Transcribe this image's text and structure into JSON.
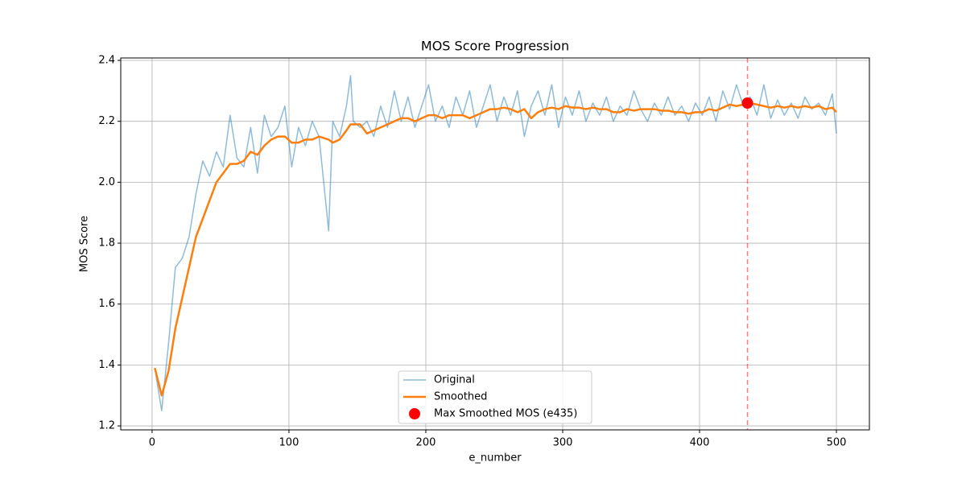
{
  "chart_data": {
    "type": "line",
    "title": "MOS Score Progression",
    "xlabel": "e_number",
    "ylabel": "MOS Score",
    "xlim": [
      -22.9,
      524.1
    ],
    "ylim": [
      1.187,
      2.408
    ],
    "xticks": [
      0,
      100,
      200,
      300,
      400,
      500
    ],
    "yticks": [
      1.2,
      1.4,
      1.6,
      1.8,
      {
        "value": 2,
        "label": "2.0"
      },
      2.2,
      2.4
    ],
    "grid": true,
    "legend": "lower center",
    "x": [
      2,
      7,
      12,
      17,
      22,
      27,
      32,
      37,
      42,
      47,
      52,
      57,
      62,
      67,
      72,
      77,
      82,
      87,
      92,
      97,
      102,
      107,
      112,
      117,
      122,
      129,
      132,
      137,
      142,
      145,
      147,
      152,
      157,
      162,
      167,
      172,
      177,
      182,
      187,
      192,
      197,
      202,
      207,
      212,
      217,
      222,
      227,
      232,
      237,
      242,
      247,
      252,
      257,
      262,
      267,
      272,
      277,
      282,
      287,
      292,
      297,
      302,
      307,
      312,
      317,
      322,
      327,
      332,
      337,
      342,
      347,
      352,
      357,
      362,
      367,
      372,
      377,
      382,
      387,
      392,
      397,
      402,
      407,
      412,
      417,
      422,
      427,
      432,
      437,
      442,
      447,
      452,
      457,
      462,
      467,
      472,
      477,
      482,
      487,
      492,
      497,
      500
    ],
    "series": [
      {
        "name": "Original",
        "color": "#1f77b4",
        "opacity": 0.5,
        "width": 1.5,
        "values": [
          1.39,
          1.25,
          1.47,
          1.72,
          1.75,
          1.82,
          1.96,
          2.07,
          2.02,
          2.1,
          2.05,
          2.22,
          2.08,
          2.05,
          2.18,
          2.03,
          2.22,
          2.15,
          2.18,
          2.25,
          2.05,
          2.18,
          2.12,
          2.2,
          2.15,
          1.84,
          2.2,
          2.15,
          2.25,
          2.35,
          2.2,
          2.18,
          2.2,
          2.15,
          2.25,
          2.18,
          2.3,
          2.2,
          2.28,
          2.18,
          2.25,
          2.32,
          2.2,
          2.25,
          2.18,
          2.28,
          2.22,
          2.3,
          2.18,
          2.25,
          2.32,
          2.2,
          2.28,
          2.22,
          2.3,
          2.15,
          2.25,
          2.3,
          2.22,
          2.32,
          2.18,
          2.28,
          2.22,
          2.3,
          2.2,
          2.26,
          2.22,
          2.28,
          2.2,
          2.25,
          2.22,
          2.3,
          2.24,
          2.2,
          2.26,
          2.22,
          2.28,
          2.22,
          2.25,
          2.2,
          2.26,
          2.22,
          2.28,
          2.2,
          2.3,
          2.24,
          2.32,
          2.25,
          2.28,
          2.22,
          2.32,
          2.21,
          2.27,
          2.22,
          2.26,
          2.21,
          2.28,
          2.24,
          2.26,
          2.22,
          2.29,
          2.16
        ]
      },
      {
        "name": "Smoothed",
        "color": "#ff7f0e",
        "opacity": 1,
        "width": 2.5,
        "values": [
          1.39,
          1.3,
          1.38,
          1.52,
          1.62,
          1.72,
          1.82,
          1.88,
          1.94,
          2.0,
          2.03,
          2.06,
          2.06,
          2.07,
          2.1,
          2.09,
          2.12,
          2.14,
          2.15,
          2.15,
          2.13,
          2.13,
          2.14,
          2.14,
          2.15,
          2.14,
          2.13,
          2.14,
          2.17,
          2.19,
          2.19,
          2.19,
          2.16,
          2.17,
          2.18,
          2.19,
          2.2,
          2.21,
          2.21,
          2.2,
          2.21,
          2.22,
          2.22,
          2.21,
          2.22,
          2.22,
          2.22,
          2.21,
          2.22,
          2.23,
          2.24,
          2.24,
          2.245,
          2.24,
          2.23,
          2.24,
          2.21,
          2.23,
          2.24,
          2.245,
          2.24,
          2.25,
          2.245,
          2.245,
          2.24,
          2.245,
          2.24,
          2.24,
          2.23,
          2.23,
          2.24,
          2.235,
          2.24,
          2.24,
          2.24,
          2.235,
          2.235,
          2.23,
          2.23,
          2.225,
          2.23,
          2.23,
          2.24,
          2.235,
          2.245,
          2.255,
          2.25,
          2.255,
          2.26,
          2.255,
          2.25,
          2.245,
          2.25,
          2.245,
          2.25,
          2.245,
          2.25,
          2.245,
          2.25,
          2.24,
          2.245,
          2.23
        ]
      }
    ],
    "max_point": {
      "name": "Max Smoothed MOS (e435)",
      "x": 435,
      "y": 2.26,
      "color": "red"
    }
  }
}
